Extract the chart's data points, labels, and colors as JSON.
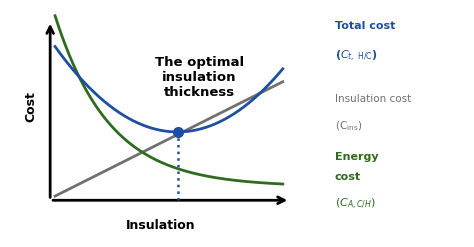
{
  "background_color": "#ffffff",
  "opt_x": 5.2,
  "opt_y": 4.0,
  "total_cost_color": "#1F4E9F",
  "insulation_cost_color": "#707070",
  "energy_cost_color": "#2E6B1F",
  "annotation_text": "The optimal\ninsulation\nthickness",
  "annotation_fontsize": 9.5,
  "ylabel": "Cost",
  "xlabel": "Insulation",
  "xlim": [
    -0.5,
    11.5
  ],
  "ylim": [
    -1.0,
    11.0
  ],
  "x_start": 0.2,
  "x_end": 9.5
}
